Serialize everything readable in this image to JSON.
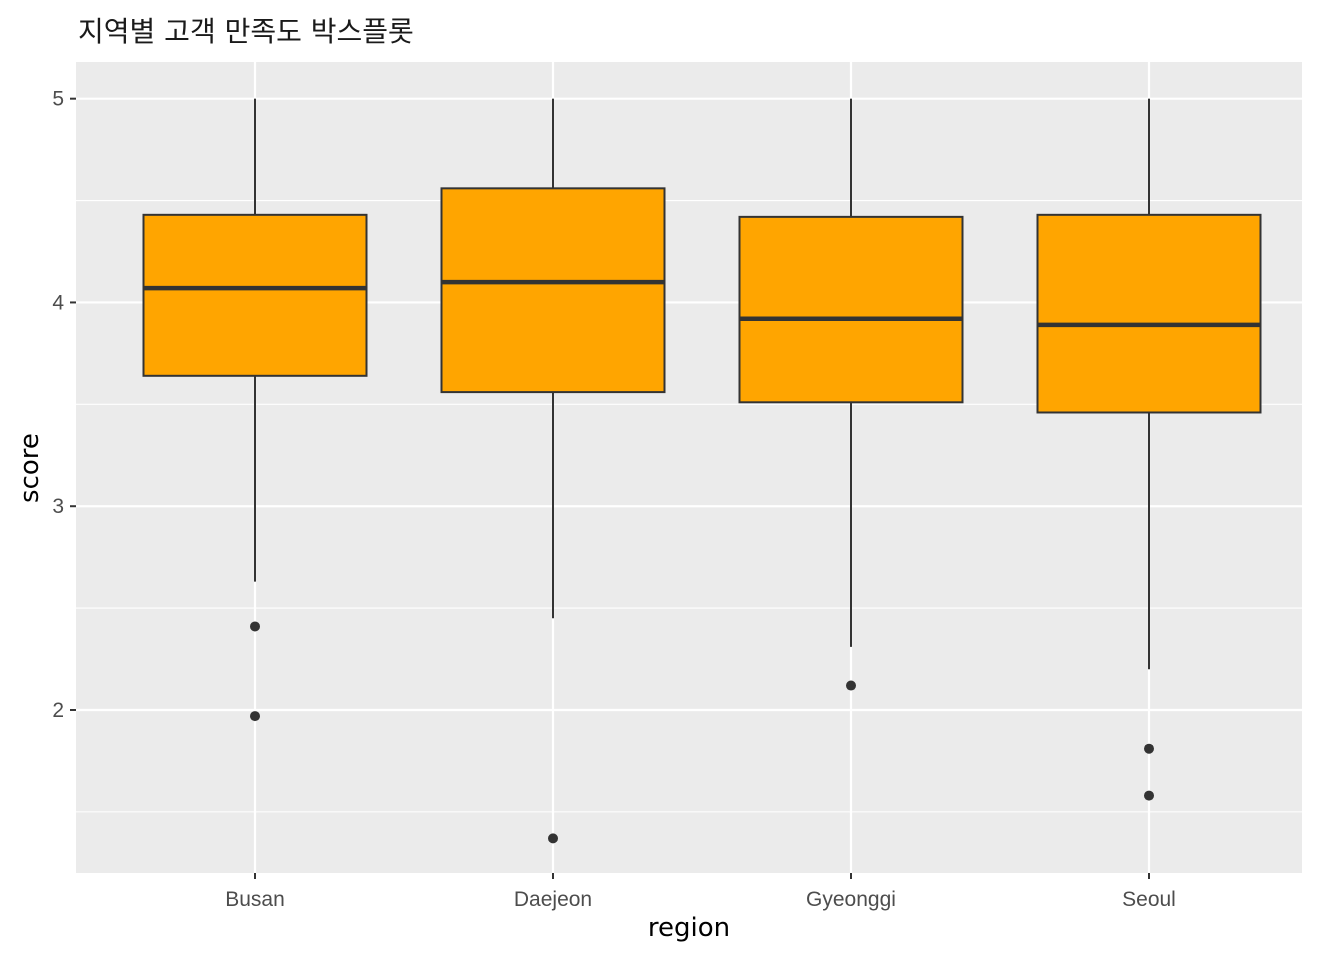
{
  "chart_data": {
    "type": "boxplot",
    "title": "지역별 고객 만족도 박스플롯",
    "xlabel": "region",
    "ylabel": "score",
    "categories": [
      "Busan",
      "Daejeon",
      "Gyeonggi",
      "Seoul"
    ],
    "ylim": [
      1.2,
      5.18
    ],
    "y_ticks": [
      2,
      3,
      4,
      5
    ],
    "y_minor_ticks": [
      1.5,
      2.5,
      3.5,
      4.5
    ],
    "boxes": [
      {
        "category": "Busan",
        "whisker_low": 2.63,
        "q1": 3.64,
        "median": 4.07,
        "q3": 4.43,
        "whisker_high": 5.0,
        "outliers": [
          2.41,
          1.97
        ]
      },
      {
        "category": "Daejeon",
        "whisker_low": 2.45,
        "q1": 3.56,
        "median": 4.1,
        "q3": 4.56,
        "whisker_high": 5.0,
        "outliers": [
          1.37
        ]
      },
      {
        "category": "Gyeonggi",
        "whisker_low": 2.31,
        "q1": 3.51,
        "median": 3.92,
        "q3": 4.42,
        "whisker_high": 5.0,
        "outliers": [
          2.12
        ]
      },
      {
        "category": "Seoul",
        "whisker_low": 2.2,
        "q1": 3.46,
        "median": 3.89,
        "q3": 4.43,
        "whisker_high": 5.0,
        "outliers": [
          1.81,
          1.58
        ]
      }
    ],
    "colors": {
      "box_fill": "#FFA500",
      "box_stroke": "#333333",
      "panel": "#EBEBEB",
      "grid": "#FFFFFF"
    },
    "grid": true,
    "legend": "none"
  }
}
